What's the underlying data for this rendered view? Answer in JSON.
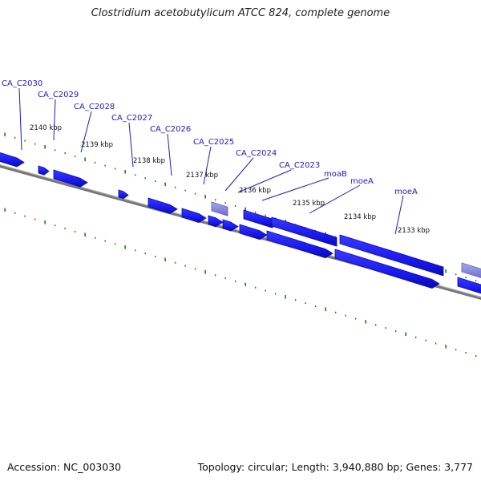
{
  "title": "Clostridium acetobutylicum ATCC 824, complete genome",
  "footer": {
    "accession": "Accession: NC_003030",
    "summary": "Topology: circular; Length: 3,940,880 bp; Genes: 3,777"
  },
  "colors": {
    "gene": "#1a1aee",
    "gene_dark": "#0808b0",
    "gene_light": "#5555ff",
    "pseudo": "#8080d8",
    "pseudo_light": "#b0b0ee",
    "backbone": "#777777",
    "tick": "#118811",
    "label": "#1a1acc",
    "leader": "#1a1acc"
  },
  "ruler_labels": [
    "2140 kbp",
    "2139 kbp",
    "2138 kbp",
    "2137 kbp",
    "2136 kbp",
    "2135 kbp",
    "2134 kbp",
    "2133 kbp"
  ],
  "gene_labels": [
    "CA_C2030",
    "CA_C2029",
    "CA_C2028",
    "CA_C2027",
    "CA_C2026",
    "CA_C2025",
    "CA_C2024",
    "CA_C2023",
    "moaB",
    "moeA",
    "moeA"
  ]
}
